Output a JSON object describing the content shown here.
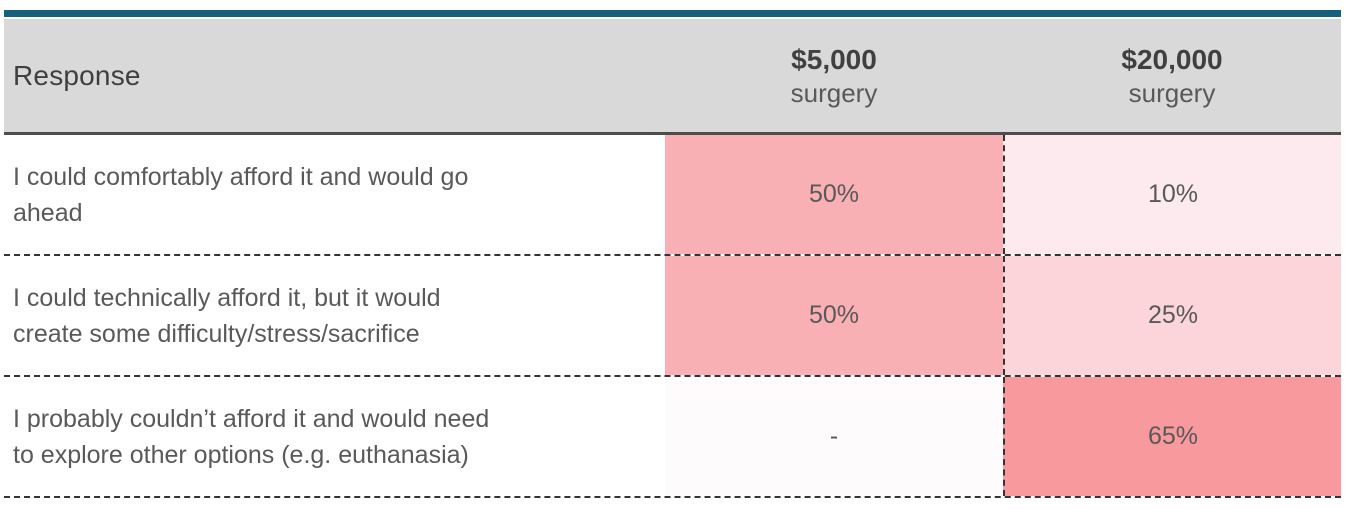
{
  "accent_bar_color": "#15607a",
  "header": {
    "bg": "#d9d9d9",
    "response_label": "Response",
    "columns": [
      {
        "price": "$5,000",
        "unit": "surgery"
      },
      {
        "price": "$20,000",
        "unit": "surgery"
      }
    ]
  },
  "rows": [
    {
      "label_lines": [
        "I could comfortably afford it and would go",
        "ahead"
      ],
      "cells": [
        {
          "value": "50%",
          "bg": "#f9b0b4"
        },
        {
          "value": "10%",
          "bg": "#fdeaee"
        }
      ]
    },
    {
      "label_lines": [
        "I could technically afford it, but it would",
        "create some difficulty/stress/sacrifice"
      ],
      "cells": [
        {
          "value": "50%",
          "bg": "#f9b0b4"
        },
        {
          "value": "25%",
          "bg": "#fbd5da"
        }
      ]
    },
    {
      "label_lines": [
        "I probably couldn’t afford it and would need",
        "to explore other options (e.g. euthanasia)"
      ],
      "cells": [
        {
          "value": "-",
          "bg": "#fdfbfc"
        },
        {
          "value": "65%",
          "bg": "#f8999e"
        }
      ]
    }
  ],
  "style_tokens": {
    "header_border_color": "#4d4d4d",
    "dashed_border_color": "#333333",
    "text_color": "#595959",
    "header_text_color": "#3f3f3f"
  },
  "chart_data": {
    "type": "table",
    "title": "",
    "columns": [
      "Response",
      "$5,000 surgery",
      "$20,000 surgery"
    ],
    "rows": [
      {
        "response": "I could comfortably afford it and would go ahead",
        "surgery_5000": "50%",
        "surgery_20000": "10%"
      },
      {
        "response": "I could technically afford it, but it would create some difficulty/stress/sacrifice",
        "surgery_5000": "50%",
        "surgery_20000": "25%"
      },
      {
        "response": "I probably couldn’t afford it and would need to explore other options (e.g. euthanasia)",
        "surgery_5000": "-",
        "surgery_20000": "65%"
      }
    ],
    "heat_shading": {
      "50%": "#f9b0b4",
      "10%": "#fdeaee",
      "25%": "#fbd5da",
      "65%": "#f8999e",
      "-": "#fdfbfc"
    }
  }
}
